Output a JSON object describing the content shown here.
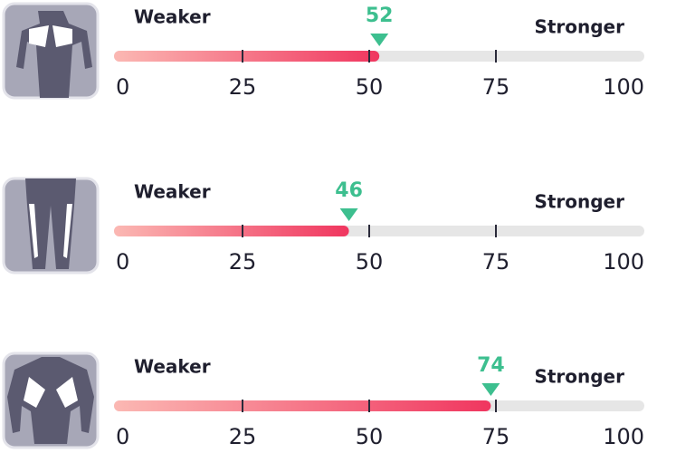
{
  "chart_data": [
    {
      "type": "gauge",
      "label_low": "Weaker",
      "label_high": "Stronger",
      "value": 52,
      "xlim": [
        0,
        100
      ],
      "xticks": [
        0,
        25,
        50,
        75,
        100
      ],
      "color": "#f0365f",
      "start_color": "#fbb8b3",
      "marker_color": "#3dbf8f",
      "track_color": "#e6e6e6"
    },
    {
      "type": "gauge",
      "label_low": "Weaker",
      "label_high": "Stronger",
      "value": 46,
      "xlim": [
        0,
        100
      ],
      "xticks": [
        0,
        25,
        50,
        75,
        100
      ],
      "color": "#f0365f",
      "start_color": "#fbb8b3",
      "marker_color": "#3dbf8f",
      "track_color": "#e6e6e6"
    },
    {
      "type": "gauge",
      "label_low": "Weaker",
      "label_high": "Stronger",
      "value": 74,
      "xlim": [
        0,
        100
      ],
      "xticks": [
        0,
        25,
        50,
        75,
        100
      ],
      "color": "#f0365f",
      "start_color": "#fbb8b3",
      "marker_color": "#3dbf8f",
      "track_color": "#e6e6e6"
    }
  ]
}
